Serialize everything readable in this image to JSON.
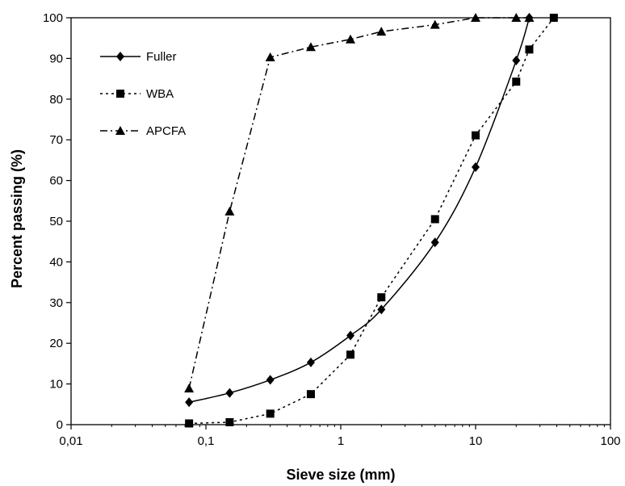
{
  "chart_data": {
    "type": "line",
    "xlabel": "Sieve size (mm)",
    "ylabel": "Percent passing (%)",
    "xscale": "log",
    "xlim": [
      0.01,
      100
    ],
    "ylim": [
      0,
      100
    ],
    "x_ticks": [
      0.01,
      0.1,
      1,
      10,
      100
    ],
    "x_tick_labels": [
      "0,01",
      "0,1",
      "1",
      "10",
      "100"
    ],
    "y_ticks": [
      0,
      10,
      20,
      30,
      40,
      50,
      60,
      70,
      80,
      90,
      100
    ],
    "y_tick_labels": [
      "0",
      "10",
      "20",
      "30",
      "40",
      "50",
      "60",
      "70",
      "80",
      "90",
      "100"
    ],
    "grid": false,
    "legend_position": "top-left",
    "series": [
      {
        "name": "Fuller",
        "marker": "diamond",
        "line": "solid",
        "smooth": true,
        "x": [
          0.075,
          0.15,
          0.3,
          0.6,
          1.18,
          2,
          5,
          10,
          20,
          25
        ],
        "y": [
          5.5,
          7.8,
          11,
          15.3,
          21.9,
          28.3,
          44.8,
          63.3,
          89.5,
          100
        ]
      },
      {
        "name": "WBA",
        "marker": "square",
        "line": "dotted",
        "smooth": false,
        "x": [
          0.075,
          0.15,
          0.3,
          0.6,
          1.18,
          2,
          5,
          10,
          20,
          25,
          38
        ],
        "y": [
          0.3,
          0.6,
          2.7,
          7.5,
          17.2,
          31.3,
          50.5,
          71.1,
          84.3,
          92.2,
          100
        ]
      },
      {
        "name": "APCFA",
        "marker": "triangle",
        "line": "dashdot",
        "smooth": false,
        "x": [
          0.075,
          0.15,
          0.3,
          0.6,
          1.18,
          2,
          5,
          10,
          20,
          25
        ],
        "y": [
          8.9,
          52.4,
          90.3,
          92.8,
          94.7,
          96.6,
          98.3,
          100,
          100,
          100
        ]
      }
    ]
  }
}
